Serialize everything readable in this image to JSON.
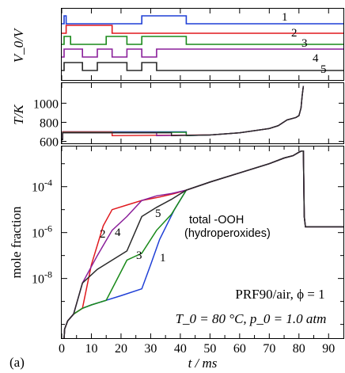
{
  "figure": {
    "panel_label": "(a)"
  },
  "chart_data": [
    {
      "type": "line",
      "panel": "top",
      "ylabel": "V_0/V",
      "xlim": [
        0,
        95
      ],
      "series": [
        {
          "name": "1",
          "color": "#1f3fd6",
          "x": [
            0,
            0.8,
            0.8,
            1.5,
            1.5,
            27,
            27,
            42,
            42,
            95
          ],
          "y": [
            7.1,
            7.1,
            8.1,
            8.1,
            7.1,
            7.1,
            8.1,
            8.1,
            7.1,
            7.1
          ]
        },
        {
          "name": "2",
          "color": "#e0191e",
          "x": [
            0,
            1.5,
            1.5,
            17,
            17,
            95
          ],
          "y": [
            5.9,
            5.9,
            6.9,
            6.9,
            5.9,
            5.9
          ]
        },
        {
          "name": "3",
          "color": "#1a8a1a",
          "x": [
            0,
            0.8,
            0.8,
            3,
            3,
            15,
            15,
            22,
            22,
            27,
            27,
            42,
            42,
            95
          ],
          "y": [
            4.5,
            4.5,
            5.5,
            5.5,
            4.5,
            4.5,
            5.5,
            5.5,
            4.5,
            4.5,
            5.5,
            5.5,
            4.5,
            4.5
          ]
        },
        {
          "name": "4",
          "color": "#8a1f9a",
          "x": [
            0,
            0.8,
            0.8,
            7,
            7,
            12,
            12,
            17,
            17,
            22,
            22,
            27,
            27,
            32,
            32,
            95
          ],
          "y": [
            2.9,
            2.9,
            3.9,
            3.9,
            2.9,
            2.9,
            3.9,
            3.9,
            2.9,
            2.9,
            3.9,
            3.9,
            2.9,
            2.9,
            3.9,
            3.9
          ]
        },
        {
          "name": "5",
          "color": "#2a2a2a",
          "x": [
            0,
            0.8,
            0.8,
            7,
            7,
            12,
            12,
            22,
            22,
            27,
            27,
            32,
            32,
            37,
            37,
            95
          ],
          "y": [
            1.2,
            1.2,
            2.2,
            2.2,
            1.2,
            1.2,
            2.2,
            2.2,
            1.2,
            1.2,
            2.2,
            2.2,
            1.2,
            1.2,
            1.2,
            1.2
          ]
        }
      ]
    },
    {
      "type": "line",
      "panel": "middle",
      "ylabel": "T/K",
      "xlim": [
        0,
        95
      ],
      "ylim": [
        580,
        1210
      ],
      "yticks": [
        600,
        800,
        1000
      ],
      "series": [
        {
          "color": "#1f3fd6",
          "x": [
            0,
            0.3,
            0.3,
            42,
            42,
            50,
            60,
            70,
            73,
            76,
            79,
            80,
            80.7,
            81.1,
            81.5
          ],
          "y": [
            620,
            620,
            700,
            700,
            660,
            668,
            690,
            735,
            765,
            825,
            850,
            870,
            950,
            1080,
            1180
          ]
        },
        {
          "color": "#e0191e",
          "x": [
            0,
            0.3,
            0.3,
            17,
            17,
            50,
            60,
            70,
            73,
            76,
            79,
            80,
            80.7,
            81.1,
            81.5
          ],
          "y": [
            620,
            620,
            700,
            700,
            660,
            668,
            690,
            735,
            765,
            825,
            850,
            870,
            950,
            1080,
            1180
          ]
        },
        {
          "color": "#1a8a1a",
          "x": [
            0,
            0.3,
            0.3,
            42,
            42,
            50,
            60,
            70,
            73,
            76,
            79,
            80,
            80.7,
            81.1,
            81.5
          ],
          "y": [
            620,
            620,
            695,
            695,
            660,
            668,
            690,
            735,
            765,
            825,
            850,
            870,
            950,
            1080,
            1180
          ]
        },
        {
          "color": "#8a1f9a",
          "x": [
            0,
            0.3,
            0.3,
            32,
            32,
            50,
            60,
            70,
            73,
            76,
            79,
            80,
            80.7,
            81.1,
            81.5
          ],
          "y": [
            620,
            620,
            692,
            692,
            660,
            668,
            690,
            735,
            765,
            825,
            850,
            870,
            950,
            1080,
            1180
          ]
        },
        {
          "color": "#2a2a2a",
          "x": [
            0,
            0.3,
            0.3,
            37,
            37,
            50,
            60,
            70,
            73,
            76,
            79,
            80,
            80.7,
            81.1,
            81.5
          ],
          "y": [
            620,
            620,
            690,
            690,
            660,
            668,
            690,
            735,
            765,
            825,
            850,
            870,
            950,
            1080,
            1180
          ]
        }
      ]
    },
    {
      "type": "line",
      "panel": "bottom",
      "title": "total -OOH (hydroperoxides)",
      "xlabel": "t / ms",
      "ylabel": "mole fraction",
      "xlim": [
        0,
        95
      ],
      "xticks": [
        0,
        10,
        20,
        30,
        40,
        50,
        60,
        70,
        80,
        90
      ],
      "log_y": true,
      "ylim": [
        -10.6,
        -2.25
      ],
      "yticks": [
        -4,
        -6,
        -8
      ],
      "ytick_labels": [
        "10^-4",
        "10^-6",
        "10^-8"
      ],
      "annotations": {
        "mixture": "PRF90/air, ϕ = 1",
        "conditions": "T_0 = 80 °C, p_0 = 1.0 atm"
      },
      "series": [
        {
          "name": "1",
          "color": "#1f3fd6",
          "x": [
            0.8,
            1,
            2,
            4,
            7,
            10,
            15,
            20,
            27,
            30,
            33,
            38,
            42,
            50,
            60,
            70,
            75,
            78,
            80,
            80.8,
            81.5,
            81.8,
            82.2,
            83.5,
            95
          ],
          "y": [
            -10.6,
            -10.2,
            -9.85,
            -9.55,
            -9.3,
            -9.15,
            -8.95,
            -8.75,
            -8.45,
            -7.4,
            -6.3,
            -5.0,
            -4.15,
            -3.8,
            -3.4,
            -3.0,
            -2.75,
            -2.65,
            -2.5,
            -2.45,
            -2.45,
            -5.3,
            -5.75,
            -5.75,
            -5.75
          ]
        },
        {
          "name": "2",
          "color": "#e0191e",
          "x": [
            0.8,
            1,
            2,
            4,
            7,
            10,
            14,
            17,
            22,
            27,
            33,
            38,
            42,
            50,
            60,
            70,
            75,
            78,
            80,
            80.8,
            81.5,
            81.8,
            82.2,
            83.5,
            95
          ],
          "y": [
            -10.6,
            -10.2,
            -9.85,
            -9.55,
            -9.3,
            -7.4,
            -5.7,
            -5.0,
            -4.8,
            -4.6,
            -4.45,
            -4.3,
            -4.15,
            -3.8,
            -3.4,
            -3.0,
            -2.75,
            -2.65,
            -2.5,
            -2.45,
            -2.45,
            -5.3,
            -5.75,
            -5.75,
            -5.75
          ]
        },
        {
          "name": "3",
          "color": "#1a8a1a",
          "x": [
            0.8,
            1,
            2,
            4,
            7,
            10,
            15,
            22,
            27,
            32,
            37,
            42,
            50,
            60,
            70,
            75,
            78,
            80,
            80.8,
            81.5,
            81.8,
            82.2,
            83.5,
            95
          ],
          "y": [
            -10.6,
            -10.2,
            -9.85,
            -9.55,
            -9.3,
            -9.15,
            -8.95,
            -7.2,
            -6.9,
            -5.9,
            -5.2,
            -4.15,
            -3.8,
            -3.4,
            -3.0,
            -2.75,
            -2.65,
            -2.5,
            -2.45,
            -2.45,
            -5.3,
            -5.75,
            -5.75,
            -5.75
          ]
        },
        {
          "name": "4",
          "color": "#8a1f9a",
          "x": [
            0.8,
            1,
            2,
            4,
            7,
            12,
            17,
            22,
            27,
            32,
            37,
            42,
            50,
            60,
            70,
            75,
            78,
            80,
            80.8,
            81.5,
            81.8,
            82.2,
            83.5,
            95
          ],
          "y": [
            -10.6,
            -10.2,
            -9.85,
            -9.55,
            -8.2,
            -7.0,
            -5.9,
            -5.3,
            -4.6,
            -4.4,
            -4.3,
            -4.15,
            -3.8,
            -3.4,
            -3.0,
            -2.75,
            -2.65,
            -2.5,
            -2.45,
            -2.45,
            -5.3,
            -5.75,
            -5.75,
            -5.75
          ]
        },
        {
          "name": "5",
          "color": "#2a2a2a",
          "x": [
            0.8,
            1,
            2,
            4,
            7,
            12,
            22,
            27,
            32,
            37,
            42,
            50,
            60,
            70,
            75,
            78,
            80,
            80.8,
            81.5,
            81.8,
            82.2,
            83.5,
            95
          ],
          "y": [
            -10.6,
            -10.2,
            -9.85,
            -9.55,
            -8.2,
            -7.6,
            -6.8,
            -5.3,
            -4.9,
            -4.55,
            -4.15,
            -3.8,
            -3.4,
            -3.0,
            -2.75,
            -2.65,
            -2.5,
            -2.45,
            -2.45,
            -5.3,
            -5.75,
            -5.75,
            -5.75
          ]
        }
      ]
    }
  ]
}
